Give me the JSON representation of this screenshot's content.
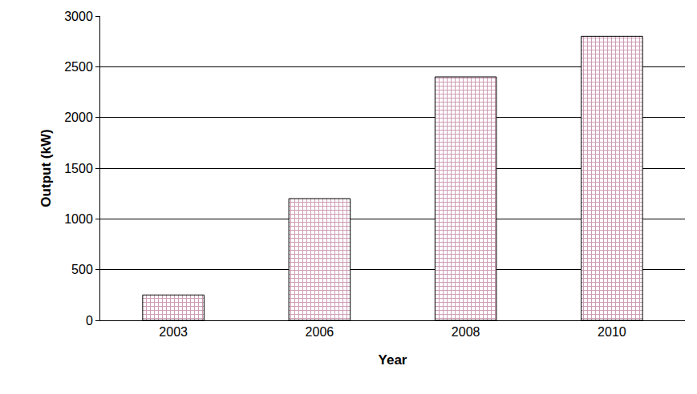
{
  "chart_data": {
    "type": "bar",
    "x_label": "Year",
    "y_label": "Output (kW)",
    "categories": [
      "2003",
      "2006",
      "2008",
      "2010"
    ],
    "values": [
      250,
      1200,
      2400,
      2800
    ],
    "color": "#993366",
    "ylim": [
      0,
      3000
    ],
    "yticks": [
      0,
      500,
      1000,
      1500,
      2000,
      2500,
      3000
    ],
    "grid": true
  }
}
